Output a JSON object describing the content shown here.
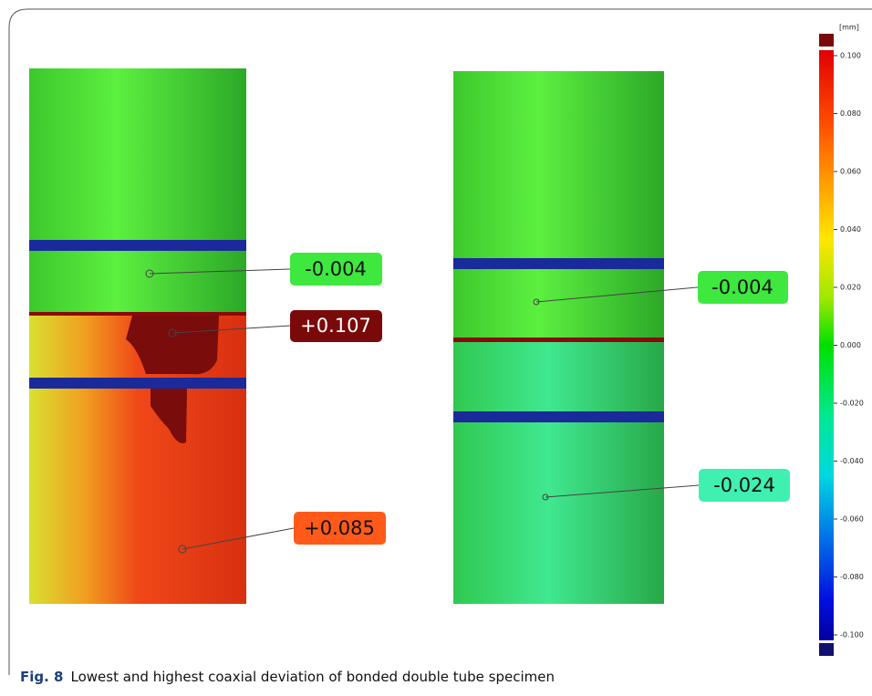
{
  "figure": {
    "caption_label": "Fig. 8",
    "caption": "Lowest and highest coaxial deviation of bonded double tube specimen",
    "scale": {
      "unit": "[mm]",
      "ticks": [
        "0.100",
        "0.080",
        "0.060",
        "0.040",
        "0.020",
        "0.000",
        "-0.020",
        "-0.040",
        "-0.060",
        "-0.080",
        "-0.100"
      ]
    },
    "left_specimen": {
      "callouts": [
        "-0.004",
        "+0.107",
        "+0.085"
      ]
    },
    "right_specimen": {
      "callouts": [
        "-0.004",
        "-0.024"
      ]
    }
  }
}
